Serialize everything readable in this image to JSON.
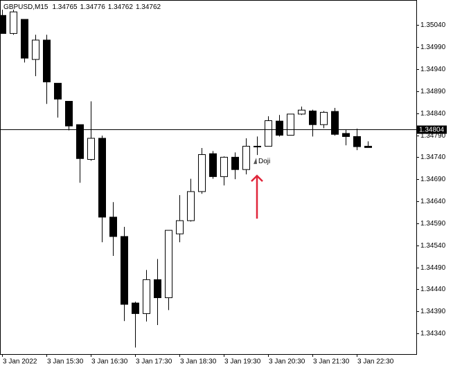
{
  "chart_data": {
    "type": "candlestick",
    "title": "GBPUSD,M15",
    "categories": [
      "3 Jan 2022",
      null,
      null,
      null,
      "3 Jan 15:30",
      null,
      null,
      null,
      "3 Jan 16:30",
      null,
      null,
      null,
      "3 Jan 17:30",
      null,
      null,
      null,
      "3 Jan 18:30",
      null,
      null,
      null,
      "3 Jan 19:30",
      null,
      null,
      null,
      "3 Jan 20:30",
      null,
      null,
      null,
      "3 Jan 21:30",
      null,
      null,
      null,
      "3 Jan 22:30",
      null
    ],
    "open": [
      1.35062,
      1.35021,
      1.35053,
      1.34962,
      1.35006,
      1.34908,
      1.34867,
      1.34814,
      1.34735,
      1.34783,
      1.34604,
      1.3456,
      1.34409,
      1.34385,
      1.34462,
      1.34421,
      1.34566,
      1.34596,
      1.34662,
      1.34748,
      1.34696,
      1.3474,
      1.34712,
      1.34764,
      1.34765,
      1.34822,
      1.3479,
      1.34838,
      1.34845,
      1.34814,
      1.34844,
      1.34794,
      1.34787,
      1.34765
    ],
    "high": [
      1.35075,
      1.35075,
      1.35053,
      1.35018,
      1.35018,
      1.34908,
      1.34867,
      1.34814,
      1.34867,
      1.34789,
      1.34638,
      1.34582,
      1.34412,
      1.34484,
      1.34509,
      1.34574,
      1.34654,
      1.34691,
      1.34761,
      1.34754,
      1.34742,
      1.34751,
      1.34783,
      1.34787,
      1.34833,
      1.34836,
      1.34838,
      1.34855,
      1.34848,
      1.34845,
      1.34852,
      1.34803,
      1.34805,
      1.34776
    ],
    "low": [
      1.35021,
      1.35018,
      1.34955,
      1.34924,
      1.34861,
      1.3483,
      1.34801,
      1.34682,
      1.34732,
      1.34547,
      1.34516,
      1.34368,
      1.34308,
      1.34367,
      1.34359,
      1.34393,
      1.34547,
      1.34594,
      1.34657,
      1.34691,
      1.34676,
      1.3469,
      1.34701,
      1.34745,
      1.34765,
      1.34787,
      1.3479,
      1.34836,
      1.34787,
      1.34806,
      1.34789,
      1.34767,
      1.34756,
      1.34762
    ],
    "close": [
      1.35021,
      1.3507,
      1.34965,
      1.35006,
      1.34911,
      1.34872,
      1.34811,
      1.34737,
      1.34783,
      1.34604,
      1.3456,
      1.34406,
      1.34385,
      1.34462,
      1.34421,
      1.34574,
      1.34596,
      1.34662,
      1.34746,
      1.34696,
      1.3474,
      1.34712,
      1.34765,
      1.34765,
      1.34823,
      1.3479,
      1.34838,
      1.34847,
      1.34814,
      1.34842,
      1.34792,
      1.34787,
      1.34764,
      1.34762
    ],
    "up_color": "#ffffff",
    "down_color": "#000000",
    "current_price": 1.34804,
    "annotation": "Doji",
    "annotation_index": 23,
    "arrow_color": "#e0253a",
    "ylim": [
      1.34293,
      1.35097
    ],
    "yticks": [
      {
        "value": 1.3504,
        "label": "1.35040"
      },
      {
        "value": 1.3499,
        "label": "1.34990"
      },
      {
        "value": 1.3494,
        "label": "1.34940"
      },
      {
        "value": 1.3489,
        "label": "1.34890"
      },
      {
        "value": 1.3484,
        "label": "1.34840"
      },
      {
        "value": 1.3479,
        "label": "1.34790"
      },
      {
        "value": 1.3474,
        "label": "1.34740"
      },
      {
        "value": 1.3469,
        "label": "1.34690"
      },
      {
        "value": 1.3464,
        "label": "1.34640"
      },
      {
        "value": 1.3459,
        "label": "1.34590"
      },
      {
        "value": 1.3454,
        "label": "1.34540"
      },
      {
        "value": 1.3449,
        "label": "1.34490"
      },
      {
        "value": 1.3444,
        "label": "1.34440"
      },
      {
        "value": 1.3439,
        "label": "1.34390"
      },
      {
        "value": 1.3434,
        "label": "1.34340"
      }
    ]
  }
}
